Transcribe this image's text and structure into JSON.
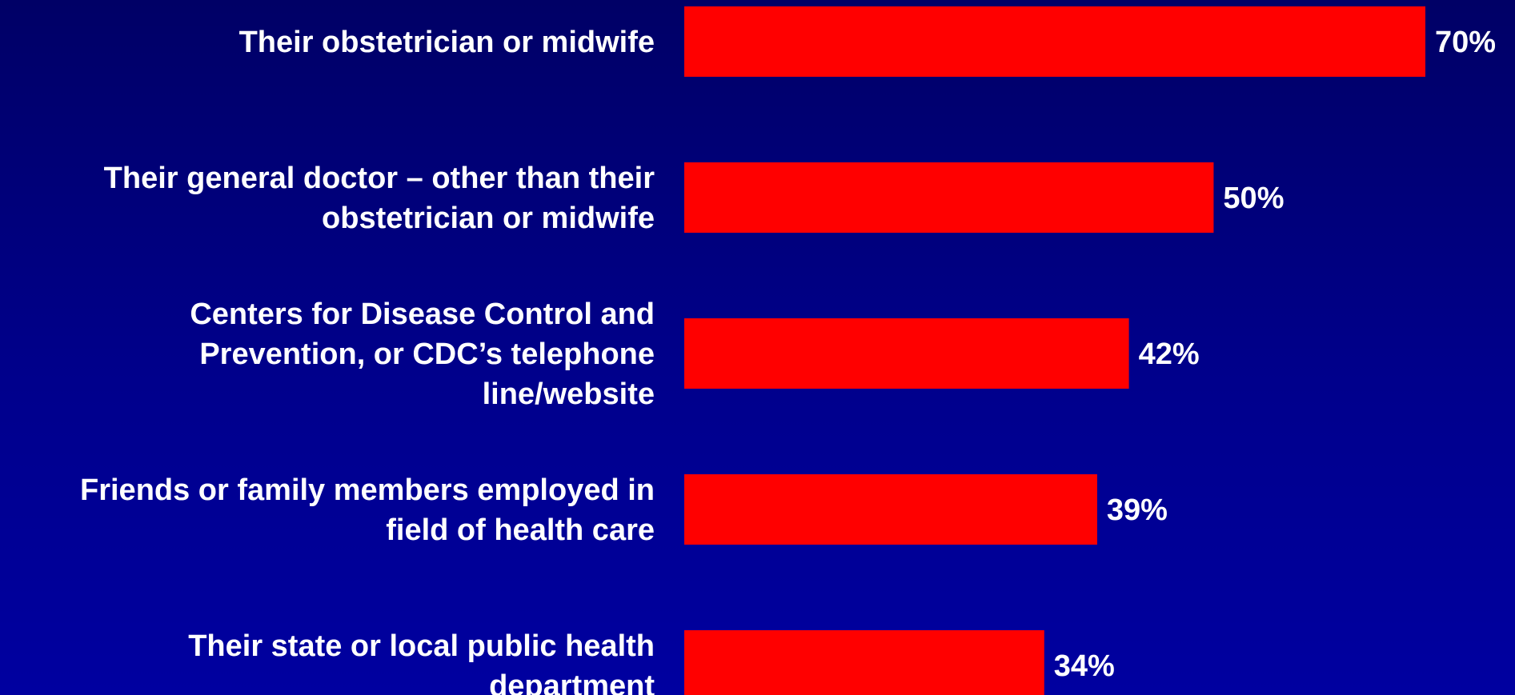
{
  "chart_data": {
    "type": "bar",
    "orientation": "horizontal",
    "categories": [
      [
        "Their obstetrician or midwife"
      ],
      [
        "Their general doctor – other than their",
        "obstetrician or midwife"
      ],
      [
        "Centers for Disease Control and",
        "Prevention, or CDC’s telephone",
        "line/website"
      ],
      [
        "Friends or family members employed in",
        "field of health care"
      ],
      [
        "Their state or local public health",
        "department"
      ]
    ],
    "values": [
      70,
      50,
      42,
      39,
      34
    ],
    "value_labels": [
      "70%",
      "50%",
      "42%",
      "39%",
      "34%"
    ],
    "title": "",
    "xlabel": "",
    "ylabel": "",
    "xlim": [
      0,
      70
    ],
    "grid": false,
    "legend": "none",
    "bar_color": "#ff0000",
    "text_color": "#ffffff"
  }
}
